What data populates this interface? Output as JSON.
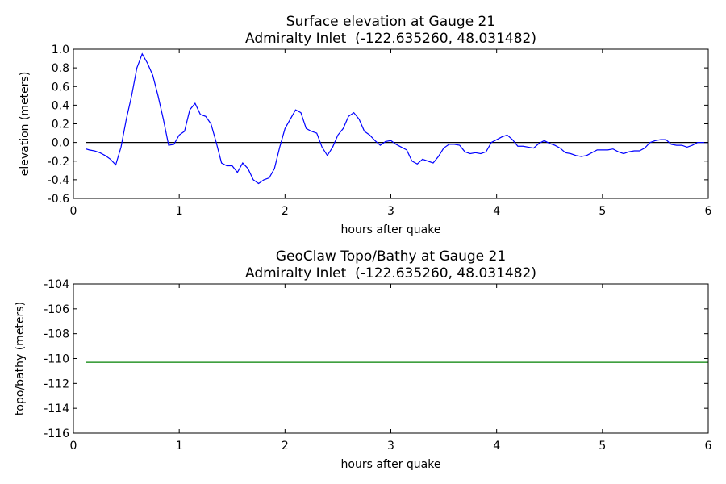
{
  "chart_data": [
    {
      "type": "line",
      "title": "Surface elevation at Gauge 21",
      "subtitle": "Admiralty Inlet  (-122.635260, 48.031482)",
      "xlabel": "hours after quake",
      "ylabel": "elevation (meters)",
      "xlim": [
        0,
        6
      ],
      "xticks": [
        0,
        1,
        2,
        3,
        4,
        5,
        6
      ],
      "ylim": [
        -0.6,
        1.0
      ],
      "yticks": [
        {
          "value": -0.6,
          "label": "-0.6"
        },
        {
          "value": -0.4,
          "label": "-0.4"
        },
        {
          "value": -0.2,
          "label": "-0.2"
        },
        {
          "value": 0,
          "label": "0.0"
        },
        {
          "value": 0.2,
          "label": "0.2"
        },
        {
          "value": 0.4,
          "label": "0.4"
        },
        {
          "value": 0.6,
          "label": "0.6"
        },
        {
          "value": 0.8,
          "label": "0.8"
        },
        {
          "value": 1.0,
          "label": "1.0"
        }
      ],
      "series": [
        {
          "color": "#000000",
          "x": [
            0.12,
            6.0
          ],
          "values": [
            0,
            0
          ]
        },
        {
          "color": "#0000ff",
          "x": [
            0.12,
            0.15,
            0.2,
            0.25,
            0.3,
            0.35,
            0.4,
            0.45,
            0.5,
            0.55,
            0.6,
            0.65,
            0.7,
            0.75,
            0.8,
            0.85,
            0.9,
            0.95,
            1.0,
            1.05,
            1.1,
            1.15,
            1.2,
            1.25,
            1.3,
            1.35,
            1.4,
            1.45,
            1.5,
            1.55,
            1.6,
            1.65,
            1.7,
            1.75,
            1.8,
            1.85,
            1.9,
            1.95,
            2.0,
            2.05,
            2.1,
            2.15,
            2.2,
            2.25,
            2.3,
            2.35,
            2.4,
            2.45,
            2.5,
            2.55,
            2.6,
            2.65,
            2.7,
            2.75,
            2.8,
            2.85,
            2.9,
            2.95,
            3.0,
            3.05,
            3.1,
            3.15,
            3.2,
            3.25,
            3.3,
            3.35,
            3.4,
            3.45,
            3.5,
            3.55,
            3.6,
            3.65,
            3.7,
            3.75,
            3.8,
            3.85,
            3.9,
            3.95,
            4.0,
            4.05,
            4.1,
            4.15,
            4.2,
            4.25,
            4.3,
            4.35,
            4.4,
            4.45,
            4.5,
            4.55,
            4.6,
            4.65,
            4.7,
            4.75,
            4.8,
            4.85,
            4.9,
            4.95,
            5.0,
            5.05,
            5.1,
            5.15,
            5.2,
            5.25,
            5.3,
            5.35,
            5.4,
            5.45,
            5.5,
            5.55,
            5.6,
            5.65,
            5.7,
            5.75,
            5.8,
            5.85,
            5.9,
            5.95,
            6.0
          ],
          "values": [
            -0.07,
            -0.08,
            -0.09,
            -0.11,
            -0.14,
            -0.18,
            -0.24,
            -0.05,
            0.25,
            0.5,
            0.8,
            0.95,
            0.85,
            0.72,
            0.5,
            0.25,
            -0.03,
            -0.02,
            0.08,
            0.12,
            0.35,
            0.42,
            0.3,
            0.28,
            0.2,
            0.0,
            -0.22,
            -0.25,
            -0.25,
            -0.32,
            -0.22,
            -0.28,
            -0.4,
            -0.44,
            -0.4,
            -0.38,
            -0.28,
            -0.05,
            0.15,
            0.25,
            0.35,
            0.32,
            0.15,
            0.12,
            0.1,
            -0.05,
            -0.14,
            -0.05,
            0.08,
            0.15,
            0.28,
            0.32,
            0.25,
            0.12,
            0.08,
            0.02,
            -0.03,
            0.01,
            0.02,
            -0.02,
            -0.05,
            -0.08,
            -0.2,
            -0.23,
            -0.18,
            -0.2,
            -0.22,
            -0.15,
            -0.06,
            -0.02,
            -0.02,
            -0.03,
            -0.1,
            -0.12,
            -0.11,
            -0.12,
            -0.1,
            0.0,
            0.03,
            0.06,
            0.08,
            0.03,
            -0.04,
            -0.04,
            -0.05,
            -0.06,
            -0.01,
            0.02,
            -0.01,
            -0.03,
            -0.06,
            -0.11,
            -0.12,
            -0.14,
            -0.15,
            -0.14,
            -0.11,
            -0.08,
            -0.08,
            -0.08,
            -0.07,
            -0.1,
            -0.12,
            -0.1,
            -0.09,
            -0.09,
            -0.06,
            0.0,
            0.02,
            0.03,
            0.03,
            -0.02,
            -0.03,
            -0.03,
            -0.05,
            -0.03,
            0.0,
            0.0,
            0.0
          ]
        }
      ]
    },
    {
      "type": "line",
      "title": "GeoClaw Topo/Bathy at Gauge 21",
      "subtitle": "Admiralty Inlet  (-122.635260, 48.031482)",
      "xlabel": "hours after quake",
      "ylabel": "topo/bathy (meters)",
      "xlim": [
        0,
        6
      ],
      "xticks": [
        0,
        1,
        2,
        3,
        4,
        5,
        6
      ],
      "ylim": [
        -116,
        -104
      ],
      "yticks": [
        -116,
        -114,
        -112,
        -110,
        -108,
        -106,
        -104
      ],
      "series": [
        {
          "color": "#008000",
          "x": [
            0.12,
            6.0
          ],
          "values": [
            -110.3,
            -110.3
          ]
        }
      ]
    }
  ]
}
